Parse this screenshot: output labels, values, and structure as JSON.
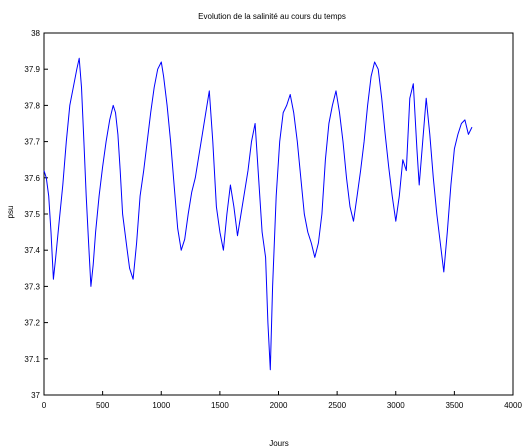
{
  "chart_data": {
    "type": "line",
    "title": "Evolution de la salinité au cours du temps",
    "xlabel": "Jours",
    "ylabel": "psu",
    "xlim": [
      0,
      4000
    ],
    "ylim": [
      37,
      38
    ],
    "x_ticks": [
      0,
      500,
      1000,
      1500,
      2000,
      2500,
      3000,
      3500,
      4000
    ],
    "y_ticks": [
      37,
      37.1,
      37.2,
      37.3,
      37.4,
      37.5,
      37.6,
      37.7,
      37.8,
      37.9,
      38
    ],
    "x_tick_labels": [
      "0",
      "500",
      "1000",
      "1500",
      "2000",
      "2500",
      "3000",
      "3500",
      "4000"
    ],
    "y_tick_labels": [
      "37",
      "37.1",
      "37.2",
      "37.3",
      "37.4",
      "37.5",
      "37.6",
      "37.7",
      "37.8",
      "37.9",
      "38"
    ],
    "grid": false,
    "line_color": "#0000ff",
    "series": [
      {
        "x": [
          0,
          20,
          40,
          60,
          80,
          100,
          130,
          160,
          190,
          220,
          250,
          280,
          300,
          320,
          340,
          360,
          380,
          400,
          420,
          440,
          470,
          500,
          530,
          560,
          590,
          610,
          630,
          650,
          670,
          690,
          710,
          730,
          760,
          790,
          820,
          850,
          880,
          910,
          940,
          970,
          1000,
          1020,
          1050,
          1080,
          1110,
          1140,
          1170,
          1200,
          1230,
          1260,
          1290,
          1320,
          1350,
          1380,
          1410,
          1440,
          1470,
          1500,
          1530,
          1560,
          1590,
          1620,
          1650,
          1680,
          1710,
          1740,
          1770,
          1800,
          1830,
          1860,
          1890,
          1910,
          1930,
          1950,
          1980,
          2010,
          2040,
          2070,
          2100,
          2130,
          2160,
          2190,
          2220,
          2250,
          2280,
          2310,
          2340,
          2370,
          2400,
          2430,
          2460,
          2490,
          2520,
          2550,
          2580,
          2610,
          2640,
          2670,
          2700,
          2730,
          2760,
          2790,
          2820,
          2850,
          2880,
          2910,
          2940,
          2970,
          3000,
          3030,
          3060,
          3090,
          3120,
          3150,
          3180,
          3200,
          3230,
          3260,
          3290,
          3320,
          3350,
          3380,
          3410,
          3440,
          3470,
          3500,
          3530,
          3560,
          3590,
          3620,
          3650
        ],
        "y": [
          37.62,
          37.6,
          37.55,
          37.45,
          37.32,
          37.38,
          37.48,
          37.58,
          37.7,
          37.8,
          37.85,
          37.9,
          37.93,
          37.85,
          37.7,
          37.55,
          37.42,
          37.3,
          37.36,
          37.45,
          37.55,
          37.63,
          37.7,
          37.76,
          37.8,
          37.78,
          37.72,
          37.62,
          37.5,
          37.45,
          37.4,
          37.35,
          37.32,
          37.42,
          37.55,
          37.62,
          37.7,
          37.78,
          37.85,
          37.9,
          37.92,
          37.88,
          37.8,
          37.7,
          37.58,
          37.46,
          37.4,
          37.43,
          37.5,
          37.56,
          37.6,
          37.66,
          37.72,
          37.78,
          37.84,
          37.7,
          37.52,
          37.45,
          37.4,
          37.5,
          37.58,
          37.52,
          37.44,
          37.5,
          37.56,
          37.62,
          37.7,
          37.75,
          37.6,
          37.45,
          37.38,
          37.2,
          37.07,
          37.3,
          37.55,
          37.7,
          37.78,
          37.8,
          37.83,
          37.78,
          37.7,
          37.6,
          37.5,
          37.45,
          37.42,
          37.38,
          37.42,
          37.5,
          37.65,
          37.75,
          37.8,
          37.84,
          37.78,
          37.7,
          37.6,
          37.52,
          37.48,
          37.55,
          37.62,
          37.7,
          37.8,
          37.88,
          37.92,
          37.9,
          37.82,
          37.72,
          37.63,
          37.55,
          37.48,
          37.55,
          37.65,
          37.62,
          37.82,
          37.86,
          37.68,
          37.58,
          37.7,
          37.82,
          37.72,
          37.6,
          37.5,
          37.42,
          37.34,
          37.45,
          37.58,
          37.68,
          37.72,
          37.75,
          37.76,
          37.72,
          37.74
        ]
      }
    ]
  }
}
